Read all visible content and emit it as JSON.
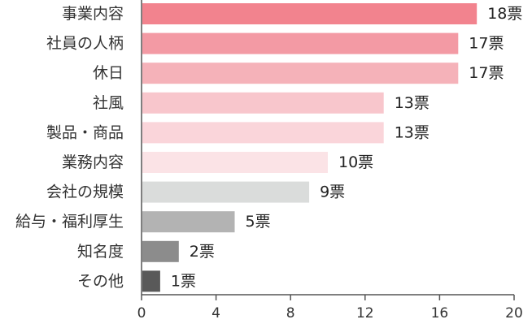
{
  "chart_data": {
    "type": "bar",
    "orientation": "horizontal",
    "categories": [
      "事業内容",
      "社員の人柄",
      "休日",
      "社風",
      "製品・商品",
      "業務内容",
      "会社の規模",
      "給与・福利厚生",
      "知名度",
      "その他"
    ],
    "values": [
      18,
      17,
      17,
      13,
      13,
      10,
      9,
      5,
      2,
      1
    ],
    "value_labels": [
      "18票",
      "17票",
      "17票",
      "13票",
      "13票",
      "10票",
      "9票",
      "5票",
      "2票",
      "1票"
    ],
    "bar_colors": [
      "#f2838e",
      "#f39aa4",
      "#f5b2b9",
      "#f8c6cc",
      "#fad5da",
      "#fbe3e6",
      "#dadcdb",
      "#b3b3b3",
      "#8c8c8c",
      "#595959"
    ],
    "xlim": [
      0,
      20
    ],
    "xticks": [
      0,
      4,
      8,
      12,
      16,
      20
    ],
    "title": "",
    "xlabel": "",
    "ylabel": "",
    "grid": false,
    "legend": "none"
  }
}
